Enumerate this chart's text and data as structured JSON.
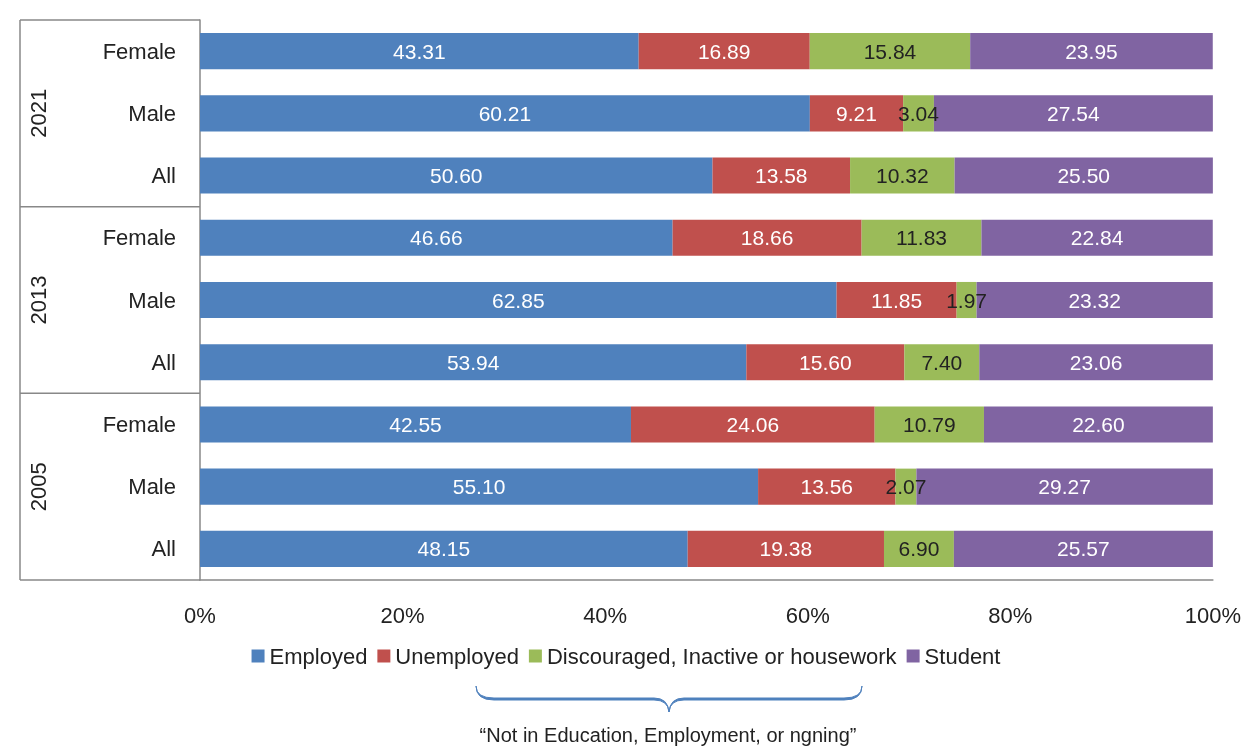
{
  "chart_data": {
    "type": "bar",
    "orientation": "horizontal",
    "stacked": true,
    "grid": false,
    "legend": "bottom",
    "categories": [
      "Female",
      "Male",
      "All",
      "Female",
      "Male",
      "All",
      "Female",
      "Male",
      "All"
    ],
    "series": [
      {
        "name": "Employed",
        "color": "#4f81bd",
        "values": [
          43.31,
          60.21,
          50.6,
          46.66,
          62.85,
          53.94,
          42.55,
          55.1,
          48.15
        ],
        "value_labels": [
          "43.31",
          "60.21",
          "50.60",
          "46.66",
          "62.85",
          "53.94",
          "42.55",
          "55.10",
          "48.15"
        ]
      },
      {
        "name": "Unemployed",
        "color": "#c0504d",
        "values": [
          16.89,
          9.21,
          13.58,
          18.66,
          11.85,
          15.6,
          24.06,
          13.56,
          19.38
        ],
        "value_labels": [
          "16.89",
          "9.21",
          "13.58",
          "18.66",
          "11.85",
          "15.60",
          "24.06",
          "13.56",
          "19.38"
        ]
      },
      {
        "name": "Discouraged, Inactive or housework",
        "color": "#9bbb59",
        "values": [
          15.84,
          3.04,
          10.32,
          11.83,
          1.97,
          7.4,
          10.79,
          2.07,
          6.9
        ],
        "value_labels": [
          "15.84",
          "3.04",
          "10.32",
          "11.83",
          "1.97",
          "7.40",
          "10.79",
          "2.07",
          "6.90"
        ]
      },
      {
        "name": "Student",
        "color": "#8064a2",
        "values": [
          23.95,
          27.54,
          25.5,
          22.84,
          23.32,
          23.06,
          22.6,
          29.27,
          25.57
        ],
        "value_labels": [
          "23.95",
          "27.54",
          "25.50",
          "22.84",
          "23.32",
          "23.06",
          "22.60",
          "29.27",
          "25.57"
        ]
      }
    ],
    "xlim": [
      0,
      100
    ],
    "xticks": [
      {
        "value": 0,
        "label": "0%"
      },
      {
        "value": 20,
        "label": "20%"
      },
      {
        "value": 40,
        "label": "40%"
      },
      {
        "value": 60,
        "label": "60%"
      },
      {
        "value": 80,
        "label": "80%"
      },
      {
        "value": 100,
        "label": "100%"
      }
    ],
    "annotations": [
      "2021",
      "2013",
      "2005",
      "“Not in Education, Employment, or ngning”"
    ]
  }
}
